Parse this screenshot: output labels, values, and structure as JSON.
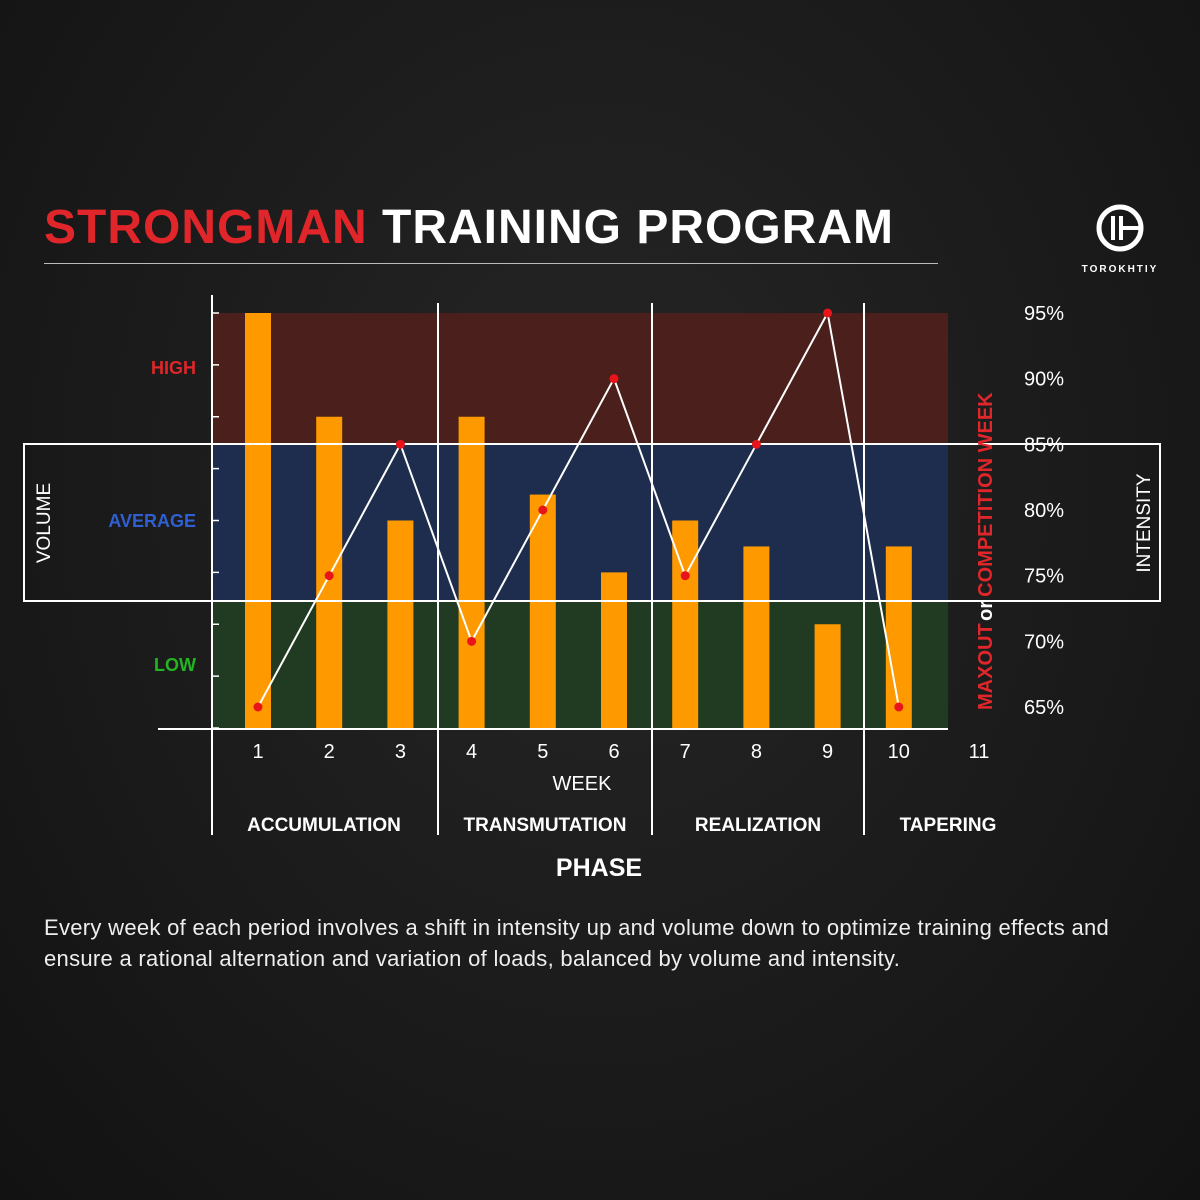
{
  "header": {
    "title_accent": "STRONGMAN",
    "title_rest": "TRAINING PROGRAM"
  },
  "logo": {
    "text": "TOROKHTIY"
  },
  "description": "Every week of each period involves a shift in intensity up and volume down to optimize training effects and ensure a rational alternation and variation of loads, balanced by volume and intensity.",
  "chart_data": {
    "type": "bar+line",
    "xlabel": "WEEK",
    "phase_label": "PHASE",
    "left_axis_label": "VOLUME",
    "right_axis_label": "INTENSITY",
    "vertical_note": {
      "part1": "MAXOUT",
      "part2": "or",
      "part3": "COMPETITION WEEK"
    },
    "weeks": [
      "1",
      "2",
      "3",
      "4",
      "5",
      "6",
      "7",
      "8",
      "9",
      "10",
      "11"
    ],
    "volume_levels": [
      {
        "label": "HIGH",
        "color": "#e0262a",
        "band_color": "#4a1f1c"
      },
      {
        "label": "AVERAGE",
        "color": "#2f5fd0",
        "band_color": "#1e2d4e"
      },
      {
        "label": "LOW",
        "color": "#22b522",
        "band_color": "#213a22"
      }
    ],
    "intensity_ticks": [
      "95%",
      "90%",
      "85%",
      "80%",
      "75%",
      "70%",
      "65%"
    ],
    "intensity_range": [
      65,
      95
    ],
    "volume_range": [
      0,
      8
    ],
    "volume_series": {
      "color": "#ff9900",
      "values": [
        8,
        6,
        4,
        6,
        4.5,
        3,
        4,
        3.5,
        2,
        3.5
      ]
    },
    "intensity_series": {
      "color": "#ffffff",
      "point_color": "#e8141a",
      "values": [
        65,
        75,
        85,
        70,
        80,
        90,
        75,
        85,
        95,
        65
      ]
    },
    "phases": [
      {
        "label": "ACCUMULATION",
        "weeks": [
          1,
          3
        ]
      },
      {
        "label": "TRANSMUTATION",
        "weeks": [
          4,
          6
        ]
      },
      {
        "label": "REALIZATION",
        "weeks": [
          7,
          9
        ]
      },
      {
        "label": "TAPERING",
        "weeks": [
          10,
          11
        ]
      }
    ]
  }
}
